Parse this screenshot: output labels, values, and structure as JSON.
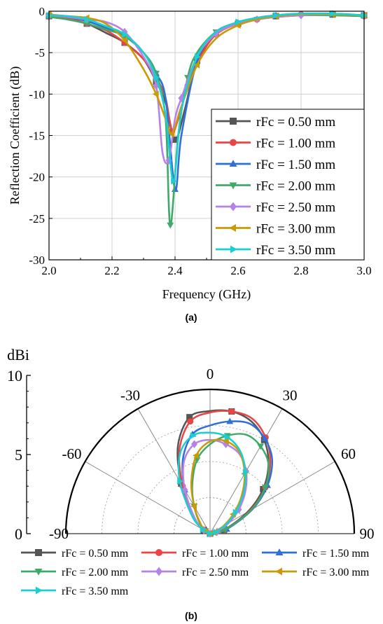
{
  "series_colors": [
    "#555555",
    "#e84545",
    "#2f6fd6",
    "#3fa96a",
    "#b583e8",
    "#c99a06",
    "#1ccfcf"
  ],
  "series_markers": [
    "square",
    "circle",
    "triangle-up",
    "triangle-down",
    "diamond",
    "triangle-left",
    "triangle-right"
  ],
  "chart_data": [
    {
      "type": "line",
      "caption": "(a)",
      "xlabel": "Frequency (GHz)",
      "ylabel": "Reflection Coefficient (dB)",
      "xlim": [
        2.0,
        3.0
      ],
      "ylim": [
        -30,
        0
      ],
      "xticks": [
        "2.0",
        "2.2",
        "2.4",
        "2.6",
        "2.8",
        "3.0"
      ],
      "yticks": [
        "0",
        "-5",
        "-10",
        "-15",
        "-20",
        "-25",
        "-30"
      ],
      "grid": true,
      "legend_position": "lower-right",
      "series": [
        {
          "name": "rFc = 0.50 mm",
          "points": [
            [
              2.0,
              -0.6
            ],
            [
              2.06,
              -1.0
            ],
            [
              2.12,
              -1.5
            ],
            [
              2.18,
              -2.6
            ],
            [
              2.24,
              -3.8
            ],
            [
              2.3,
              -5.8
            ],
            [
              2.34,
              -8.5
            ],
            [
              2.37,
              -11.0
            ],
            [
              2.4,
              -15.5
            ],
            [
              2.43,
              -12.0
            ],
            [
              2.47,
              -6.0
            ],
            [
              2.53,
              -2.8
            ],
            [
              2.6,
              -1.5
            ],
            [
              2.66,
              -1.0
            ],
            [
              2.72,
              -0.6
            ],
            [
              2.8,
              -0.4
            ],
            [
              2.9,
              -0.4
            ],
            [
              3.0,
              -0.5
            ]
          ]
        },
        {
          "name": "rFc = 1.00 mm",
          "points": [
            [
              2.0,
              -0.6
            ],
            [
              2.06,
              -0.8
            ],
            [
              2.12,
              -1.5
            ],
            [
              2.18,
              -2.3
            ],
            [
              2.24,
              -3.8
            ],
            [
              2.3,
              -5.8
            ],
            [
              2.34,
              -8.0
            ],
            [
              2.37,
              -10.5
            ],
            [
              2.39,
              -14.5
            ],
            [
              2.41,
              -13.0
            ],
            [
              2.44,
              -9.0
            ],
            [
              2.48,
              -5.5
            ],
            [
              2.53,
              -2.8
            ],
            [
              2.6,
              -1.5
            ],
            [
              2.66,
              -1.0
            ],
            [
              2.72,
              -0.5
            ],
            [
              2.8,
              -0.4
            ],
            [
              2.9,
              -0.4
            ],
            [
              3.0,
              -0.6
            ]
          ]
        },
        {
          "name": "rFc = 1.50 mm",
          "points": [
            [
              2.0,
              -0.5
            ],
            [
              2.06,
              -0.7
            ],
            [
              2.12,
              -1.2
            ],
            [
              2.18,
              -2.0
            ],
            [
              2.24,
              -3.0
            ],
            [
              2.3,
              -5.0
            ],
            [
              2.34,
              -7.5
            ],
            [
              2.37,
              -10.5
            ],
            [
              2.4,
              -21.5
            ],
            [
              2.42,
              -15.0
            ],
            [
              2.47,
              -6.0
            ],
            [
              2.53,
              -2.5
            ],
            [
              2.6,
              -1.4
            ],
            [
              2.66,
              -0.8
            ],
            [
              2.72,
              -0.5
            ],
            [
              2.8,
              -0.3
            ],
            [
              2.9,
              -0.3
            ],
            [
              3.0,
              -0.5
            ]
          ]
        },
        {
          "name": "rFc = 2.00 mm",
          "points": [
            [
              2.0,
              -0.7
            ],
            [
              2.06,
              -1.0
            ],
            [
              2.12,
              -1.5
            ],
            [
              2.18,
              -2.2
            ],
            [
              2.24,
              -3.0
            ],
            [
              2.3,
              -5.0
            ],
            [
              2.34,
              -7.5
            ],
            [
              2.37,
              -13.0
            ],
            [
              2.385,
              -25.8
            ],
            [
              2.41,
              -15.0
            ],
            [
              2.44,
              -8.0
            ],
            [
              2.47,
              -5.0
            ],
            [
              2.53,
              -2.5
            ],
            [
              2.6,
              -1.5
            ],
            [
              2.66,
              -1.0
            ],
            [
              2.72,
              -0.7
            ],
            [
              2.8,
              -0.5
            ],
            [
              2.9,
              -0.5
            ],
            [
              3.0,
              -0.6
            ]
          ]
        },
        {
          "name": "rFc = 2.50 mm",
          "points": [
            [
              2.0,
              -0.5
            ],
            [
              2.06,
              -0.7
            ],
            [
              2.12,
              -1.0
            ],
            [
              2.18,
              -1.3
            ],
            [
              2.24,
              -2.5
            ],
            [
              2.3,
              -5.5
            ],
            [
              2.34,
              -9.0
            ],
            [
              2.36,
              -17.0
            ],
            [
              2.38,
              -18.0
            ],
            [
              2.4,
              -13.0
            ],
            [
              2.42,
              -10.5
            ],
            [
              2.47,
              -5.5
            ],
            [
              2.53,
              -2.7
            ],
            [
              2.6,
              -1.5
            ],
            [
              2.66,
              -1.0
            ],
            [
              2.72,
              -0.7
            ],
            [
              2.8,
              -0.5
            ],
            [
              2.9,
              -0.4
            ],
            [
              3.0,
              -0.5
            ]
          ]
        },
        {
          "name": "rFc = 3.00 mm",
          "points": [
            [
              2.0,
              -0.4
            ],
            [
              2.06,
              -0.6
            ],
            [
              2.12,
              -0.8
            ],
            [
              2.18,
              -1.5
            ],
            [
              2.24,
              -3.5
            ],
            [
              2.3,
              -7.0
            ],
            [
              2.34,
              -10.0
            ],
            [
              2.37,
              -13.0
            ],
            [
              2.39,
              -14.8
            ],
            [
              2.42,
              -11.5
            ],
            [
              2.47,
              -6.5
            ],
            [
              2.53,
              -3.3
            ],
            [
              2.6,
              -1.7
            ],
            [
              2.66,
              -1.0
            ],
            [
              2.72,
              -0.6
            ],
            [
              2.8,
              -0.4
            ],
            [
              2.9,
              -0.4
            ],
            [
              3.0,
              -0.5
            ]
          ]
        },
        {
          "name": "rFc = 3.50 mm",
          "points": [
            [
              2.0,
              -0.5
            ],
            [
              2.06,
              -0.6
            ],
            [
              2.12,
              -1.0
            ],
            [
              2.18,
              -1.8
            ],
            [
              2.24,
              -2.8
            ],
            [
              2.3,
              -5.0
            ],
            [
              2.34,
              -8.0
            ],
            [
              2.37,
              -12.5
            ],
            [
              2.395,
              -20.5
            ],
            [
              2.42,
              -12.0
            ],
            [
              2.47,
              -5.5
            ],
            [
              2.53,
              -2.5
            ],
            [
              2.6,
              -1.3
            ],
            [
              2.66,
              -0.8
            ],
            [
              2.72,
              -0.5
            ],
            [
              2.8,
              -0.3
            ],
            [
              2.9,
              -0.3
            ],
            [
              3.0,
              -0.5
            ]
          ]
        }
      ]
    },
    {
      "type": "polar",
      "caption": "(b)",
      "r_unit": "dBi",
      "r_range": [
        0,
        10
      ],
      "r_ticks": [
        "0",
        "5",
        "10"
      ],
      "angle_range": [
        -90,
        90
      ],
      "angle_ticks": [
        "-90",
        "-60",
        "-30",
        "0",
        "30",
        "60",
        "90"
      ],
      "grid": true,
      "legend_position": "bottom",
      "series": [
        {
          "name": "rFc = 0.50 mm",
          "points": [
            [
              -90,
              0
            ],
            [
              -60,
              0.5
            ],
            [
              -45,
              1.7
            ],
            [
              -30,
              4.0
            ],
            [
              -20,
              6.5
            ],
            [
              -10,
              8.2
            ],
            [
              0,
              8.5
            ],
            [
              10,
              8.6
            ],
            [
              20,
              8.3
            ],
            [
              30,
              7.5
            ],
            [
              40,
              6.3
            ],
            [
              50,
              4.8
            ],
            [
              60,
              3.0
            ],
            [
              75,
              1.0
            ],
            [
              90,
              0
            ]
          ]
        },
        {
          "name": "rFc = 1.00 mm",
          "points": [
            [
              -90,
              0
            ],
            [
              -60,
              0.5
            ],
            [
              -45,
              1.6
            ],
            [
              -30,
              3.8
            ],
            [
              -20,
              6.2
            ],
            [
              -10,
              7.9
            ],
            [
              0,
              8.4
            ],
            [
              10,
              8.6
            ],
            [
              20,
              8.5
            ],
            [
              30,
              7.7
            ],
            [
              40,
              6.5
            ],
            [
              50,
              5.0
            ],
            [
              60,
              3.2
            ],
            [
              75,
              1.1
            ],
            [
              90,
              0
            ]
          ]
        },
        {
          "name": "rFc = 1.50 mm",
          "points": [
            [
              -90,
              0
            ],
            [
              -60,
              0.5
            ],
            [
              -45,
              1.5
            ],
            [
              -30,
              3.5
            ],
            [
              -20,
              5.5
            ],
            [
              -10,
              7.0
            ],
            [
              0,
              7.5
            ],
            [
              10,
              7.9
            ],
            [
              20,
              8.1
            ],
            [
              30,
              7.6
            ],
            [
              40,
              6.7
            ],
            [
              50,
              5.2
            ],
            [
              60,
              3.4
            ],
            [
              75,
              1.2
            ],
            [
              90,
              0
            ]
          ]
        },
        {
          "name": "rFc = 2.00 mm",
          "points": [
            [
              -90,
              0
            ],
            [
              -60,
              0.4
            ],
            [
              -45,
              1.0
            ],
            [
              -30,
              2.2
            ],
            [
              -20,
              3.6
            ],
            [
              -10,
              5.2
            ],
            [
              0,
              6.2
            ],
            [
              10,
              6.9
            ],
            [
              20,
              7.3
            ],
            [
              30,
              7.0
            ],
            [
              40,
              6.3
            ],
            [
              50,
              5.0
            ],
            [
              60,
              3.3
            ],
            [
              75,
              1.1
            ],
            [
              90,
              0
            ]
          ]
        },
        {
          "name": "rFc = 2.50 mm",
          "points": [
            [
              -90,
              0
            ],
            [
              -60,
              0.5
            ],
            [
              -45,
              1.5
            ],
            [
              -30,
              3.5
            ],
            [
              -20,
              5.3
            ],
            [
              -10,
              6.3
            ],
            [
              0,
              6.5
            ],
            [
              10,
              6.3
            ],
            [
              20,
              5.9
            ],
            [
              30,
              5.0
            ],
            [
              40,
              3.8
            ],
            [
              50,
              2.6
            ],
            [
              60,
              1.5
            ],
            [
              75,
              0.5
            ],
            [
              90,
              0
            ]
          ]
        },
        {
          "name": "rFc = 3.00 mm",
          "points": [
            [
              -90,
              0
            ],
            [
              -60,
              0.3
            ],
            [
              -45,
              0.9
            ],
            [
              -30,
              2.2
            ],
            [
              -20,
              3.8
            ],
            [
              -10,
              5.5
            ],
            [
              0,
              6.4
            ],
            [
              10,
              6.5
            ],
            [
              20,
              6.0
            ],
            [
              30,
              4.8
            ],
            [
              40,
              3.4
            ],
            [
              50,
              2.1
            ],
            [
              60,
              1.1
            ],
            [
              75,
              0.3
            ],
            [
              90,
              0
            ]
          ]
        },
        {
          "name": "rFc = 3.50 mm",
          "points": [
            [
              -90,
              0
            ],
            [
              -60,
              0.6
            ],
            [
              -45,
              1.8
            ],
            [
              -30,
              4.2
            ],
            [
              -20,
              6.0
            ],
            [
              -10,
              6.9
            ],
            [
              0,
              7.0
            ],
            [
              10,
              6.8
            ],
            [
              20,
              6.1
            ],
            [
              30,
              4.9
            ],
            [
              40,
              3.6
            ],
            [
              50,
              2.3
            ],
            [
              60,
              1.3
            ],
            [
              75,
              0.4
            ],
            [
              90,
              0
            ]
          ]
        }
      ]
    }
  ]
}
